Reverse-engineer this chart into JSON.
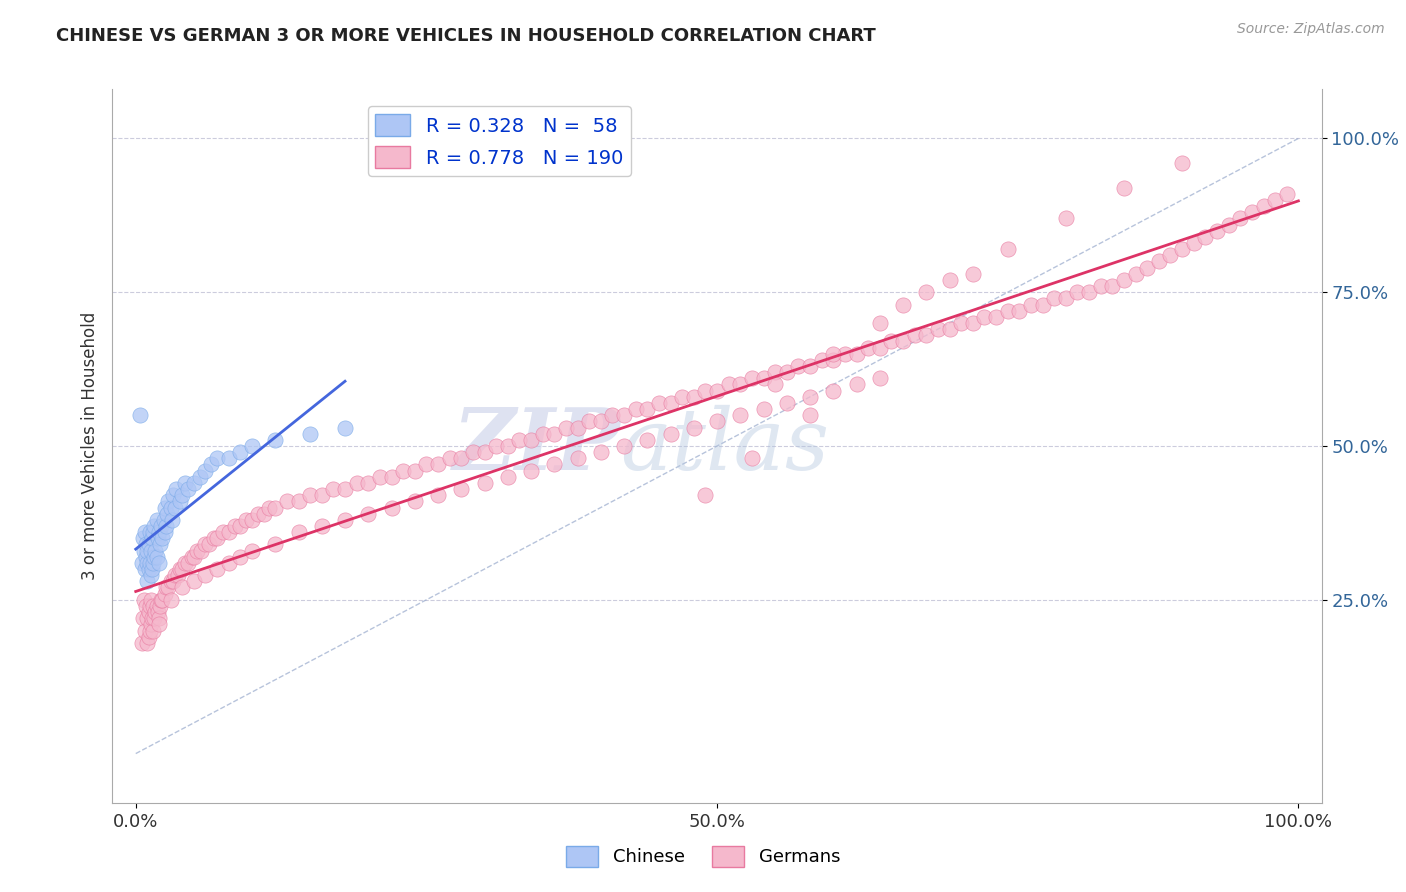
{
  "title": "CHINESE VS GERMAN 3 OR MORE VEHICLES IN HOUSEHOLD CORRELATION CHART",
  "source_text": "Source: ZipAtlas.com",
  "ylabel": "3 or more Vehicles in Household",
  "watermark_zip": "ZIP",
  "watermark_atlas": "atlas",
  "legend_chinese": {
    "R": 0.328,
    "N": 58
  },
  "legend_german": {
    "R": 0.778,
    "N": 190
  },
  "xlim": [
    -0.02,
    1.02
  ],
  "ylim": [
    -0.08,
    1.08
  ],
  "xticks": [
    0.0,
    0.5,
    1.0
  ],
  "yticks": [
    0.25,
    0.5,
    0.75,
    1.0
  ],
  "xticklabels": [
    "0.0%",
    "50.0%",
    "100.0%"
  ],
  "yticklabels": [
    "25.0%",
    "50.0%",
    "75.0%",
    "100.0%"
  ],
  "title_color": "#222222",
  "chinese_color": "#aec6f5",
  "chinese_edge": "#7aaae8",
  "german_color": "#f5b8cc",
  "german_edge": "#e87aa0",
  "trend_chinese_color": "#4466dd",
  "trend_german_color": "#dd3366",
  "diag_color": "#99aacc",
  "grid_color": "#ccccdd",
  "background_color": "#ffffff",
  "chinese_points_x": [
    0.005,
    0.006,
    0.007,
    0.008,
    0.008,
    0.009,
    0.009,
    0.01,
    0.01,
    0.01,
    0.011,
    0.011,
    0.012,
    0.012,
    0.013,
    0.013,
    0.014,
    0.014,
    0.015,
    0.015,
    0.016,
    0.016,
    0.017,
    0.018,
    0.018,
    0.019,
    0.02,
    0.02,
    0.021,
    0.022,
    0.023,
    0.024,
    0.025,
    0.025,
    0.026,
    0.027,
    0.028,
    0.03,
    0.031,
    0.032,
    0.034,
    0.035,
    0.038,
    0.04,
    0.042,
    0.045,
    0.05,
    0.055,
    0.06,
    0.065,
    0.07,
    0.08,
    0.09,
    0.1,
    0.12,
    0.15,
    0.18,
    0.004
  ],
  "chinese_points_y": [
    0.31,
    0.35,
    0.33,
    0.3,
    0.36,
    0.32,
    0.34,
    0.28,
    0.31,
    0.33,
    0.3,
    0.34,
    0.31,
    0.36,
    0.29,
    0.33,
    0.3,
    0.35,
    0.31,
    0.36,
    0.32,
    0.37,
    0.33,
    0.32,
    0.38,
    0.35,
    0.31,
    0.36,
    0.34,
    0.37,
    0.35,
    0.38,
    0.36,
    0.4,
    0.37,
    0.39,
    0.41,
    0.4,
    0.38,
    0.42,
    0.4,
    0.43,
    0.41,
    0.42,
    0.44,
    0.43,
    0.44,
    0.45,
    0.46,
    0.47,
    0.48,
    0.48,
    0.49,
    0.5,
    0.51,
    0.52,
    0.53,
    0.55
  ],
  "german_points_x": [
    0.005,
    0.006,
    0.007,
    0.008,
    0.009,
    0.01,
    0.01,
    0.011,
    0.011,
    0.012,
    0.012,
    0.013,
    0.013,
    0.014,
    0.015,
    0.015,
    0.016,
    0.017,
    0.018,
    0.019,
    0.02,
    0.021,
    0.022,
    0.023,
    0.025,
    0.026,
    0.028,
    0.03,
    0.032,
    0.034,
    0.036,
    0.038,
    0.04,
    0.042,
    0.045,
    0.048,
    0.05,
    0.053,
    0.056,
    0.06,
    0.063,
    0.067,
    0.07,
    0.075,
    0.08,
    0.085,
    0.09,
    0.095,
    0.1,
    0.105,
    0.11,
    0.115,
    0.12,
    0.13,
    0.14,
    0.15,
    0.16,
    0.17,
    0.18,
    0.19,
    0.2,
    0.21,
    0.22,
    0.23,
    0.24,
    0.25,
    0.26,
    0.27,
    0.28,
    0.29,
    0.3,
    0.31,
    0.32,
    0.33,
    0.34,
    0.35,
    0.36,
    0.37,
    0.38,
    0.39,
    0.4,
    0.41,
    0.42,
    0.43,
    0.44,
    0.45,
    0.46,
    0.47,
    0.48,
    0.49,
    0.5,
    0.51,
    0.52,
    0.53,
    0.54,
    0.55,
    0.56,
    0.57,
    0.58,
    0.59,
    0.6,
    0.61,
    0.62,
    0.63,
    0.64,
    0.65,
    0.66,
    0.67,
    0.68,
    0.69,
    0.7,
    0.71,
    0.72,
    0.73,
    0.74,
    0.75,
    0.76,
    0.77,
    0.78,
    0.79,
    0.8,
    0.81,
    0.82,
    0.83,
    0.84,
    0.85,
    0.86,
    0.87,
    0.88,
    0.89,
    0.9,
    0.91,
    0.92,
    0.93,
    0.94,
    0.95,
    0.96,
    0.97,
    0.98,
    0.99,
    0.68,
    0.72,
    0.58,
    0.53,
    0.49,
    0.55,
    0.6,
    0.64,
    0.66,
    0.7,
    0.75,
    0.8,
    0.85,
    0.9,
    0.02,
    0.03,
    0.04,
    0.05,
    0.06,
    0.07,
    0.08,
    0.09,
    0.1,
    0.12,
    0.14,
    0.16,
    0.18,
    0.2,
    0.22,
    0.24,
    0.26,
    0.28,
    0.3,
    0.32,
    0.34,
    0.36,
    0.38,
    0.4,
    0.42,
    0.44,
    0.46,
    0.48,
    0.5,
    0.52,
    0.54,
    0.56,
    0.58,
    0.6,
    0.62,
    0.64
  ],
  "german_points_y": [
    0.18,
    0.22,
    0.25,
    0.2,
    0.24,
    0.18,
    0.22,
    0.19,
    0.23,
    0.2,
    0.24,
    0.21,
    0.25,
    0.22,
    0.2,
    0.24,
    0.22,
    0.23,
    0.24,
    0.23,
    0.22,
    0.24,
    0.25,
    0.25,
    0.26,
    0.27,
    0.27,
    0.28,
    0.28,
    0.29,
    0.29,
    0.3,
    0.3,
    0.31,
    0.31,
    0.32,
    0.32,
    0.33,
    0.33,
    0.34,
    0.34,
    0.35,
    0.35,
    0.36,
    0.36,
    0.37,
    0.37,
    0.38,
    0.38,
    0.39,
    0.39,
    0.4,
    0.4,
    0.41,
    0.41,
    0.42,
    0.42,
    0.43,
    0.43,
    0.44,
    0.44,
    0.45,
    0.45,
    0.46,
    0.46,
    0.47,
    0.47,
    0.48,
    0.48,
    0.49,
    0.49,
    0.5,
    0.5,
    0.51,
    0.51,
    0.52,
    0.52,
    0.53,
    0.53,
    0.54,
    0.54,
    0.55,
    0.55,
    0.56,
    0.56,
    0.57,
    0.57,
    0.58,
    0.58,
    0.59,
    0.59,
    0.6,
    0.6,
    0.61,
    0.61,
    0.62,
    0.62,
    0.63,
    0.63,
    0.64,
    0.64,
    0.65,
    0.65,
    0.66,
    0.66,
    0.67,
    0.67,
    0.68,
    0.68,
    0.69,
    0.69,
    0.7,
    0.7,
    0.71,
    0.71,
    0.72,
    0.72,
    0.73,
    0.73,
    0.74,
    0.74,
    0.75,
    0.75,
    0.76,
    0.76,
    0.77,
    0.78,
    0.79,
    0.8,
    0.81,
    0.82,
    0.83,
    0.84,
    0.85,
    0.86,
    0.87,
    0.88,
    0.89,
    0.9,
    0.91,
    0.75,
    0.78,
    0.55,
    0.48,
    0.42,
    0.6,
    0.65,
    0.7,
    0.73,
    0.77,
    0.82,
    0.87,
    0.92,
    0.96,
    0.21,
    0.25,
    0.27,
    0.28,
    0.29,
    0.3,
    0.31,
    0.32,
    0.33,
    0.34,
    0.36,
    0.37,
    0.38,
    0.39,
    0.4,
    0.41,
    0.42,
    0.43,
    0.44,
    0.45,
    0.46,
    0.47,
    0.48,
    0.49,
    0.5,
    0.51,
    0.52,
    0.53,
    0.54,
    0.55,
    0.56,
    0.57,
    0.58,
    0.59,
    0.6,
    0.61
  ]
}
